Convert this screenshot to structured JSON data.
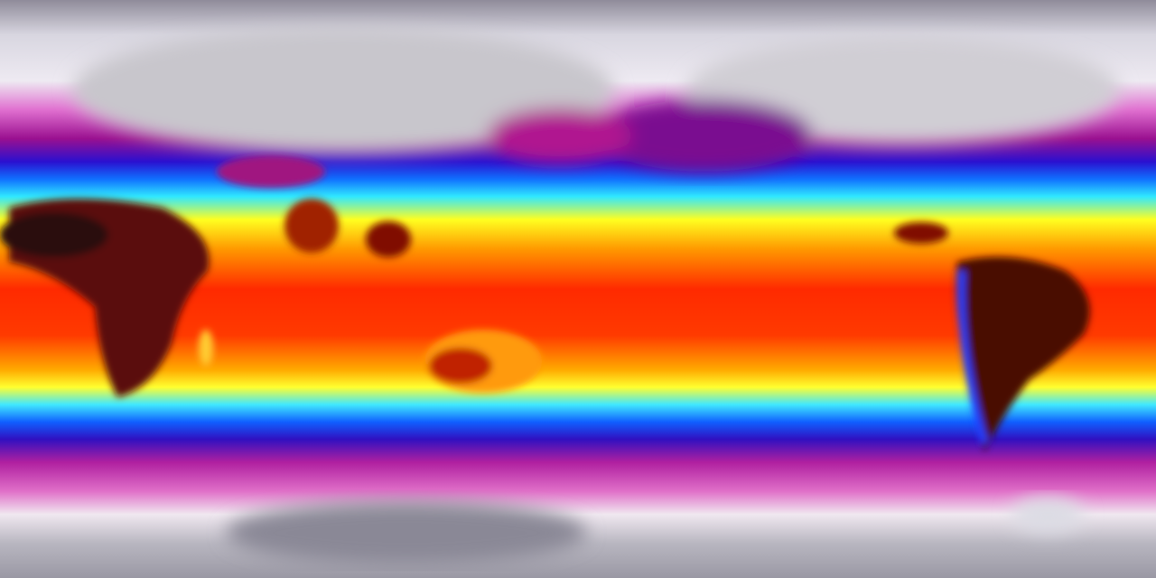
{
  "map": {
    "projection": "equirectangular",
    "field": "temperature",
    "colormap": [
      "#8a8796",
      "#ececf2",
      "#e070d0",
      "#9a1090",
      "#2a10d0",
      "#1060ff",
      "#30e8ff",
      "#ffff20",
      "#ff9a00",
      "#ff2a00",
      "#d01000",
      "#3a0a0a"
    ]
  }
}
